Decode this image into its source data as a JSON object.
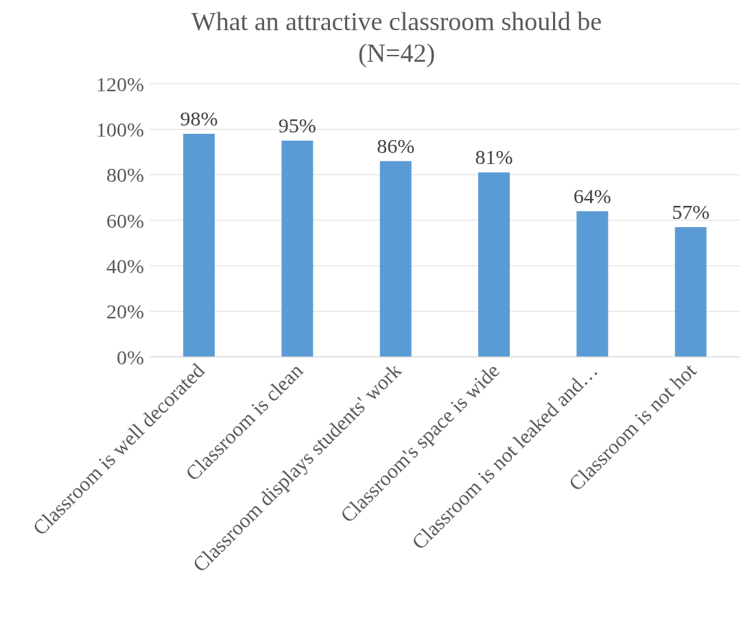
{
  "chart_data": {
    "type": "bar",
    "title": "What an attractive classroom should be\n(N=42)",
    "categories": [
      "Classroom is well decorated",
      "Classroom is clean",
      "Classroom displays students' work",
      "Classroom's space is wide",
      "Classroom is not leaked and…",
      "Classroom is not hot"
    ],
    "values": [
      98,
      95,
      86,
      81,
      64,
      57
    ],
    "value_labels": [
      "98%",
      "95%",
      "86%",
      "81%",
      "64%",
      "57%"
    ],
    "color": "#5b9bd5",
    "ylim": [
      0,
      120
    ],
    "yticks": [
      {
        "value": 0,
        "label": "0%"
      },
      {
        "value": 20,
        "label": "20%"
      },
      {
        "value": 40,
        "label": "40%"
      },
      {
        "value": 60,
        "label": "60%"
      },
      {
        "value": 80,
        "label": "80%"
      },
      {
        "value": 100,
        "label": "100%"
      },
      {
        "value": 120,
        "label": "120%"
      }
    ],
    "grid": "y",
    "legend": false
  }
}
